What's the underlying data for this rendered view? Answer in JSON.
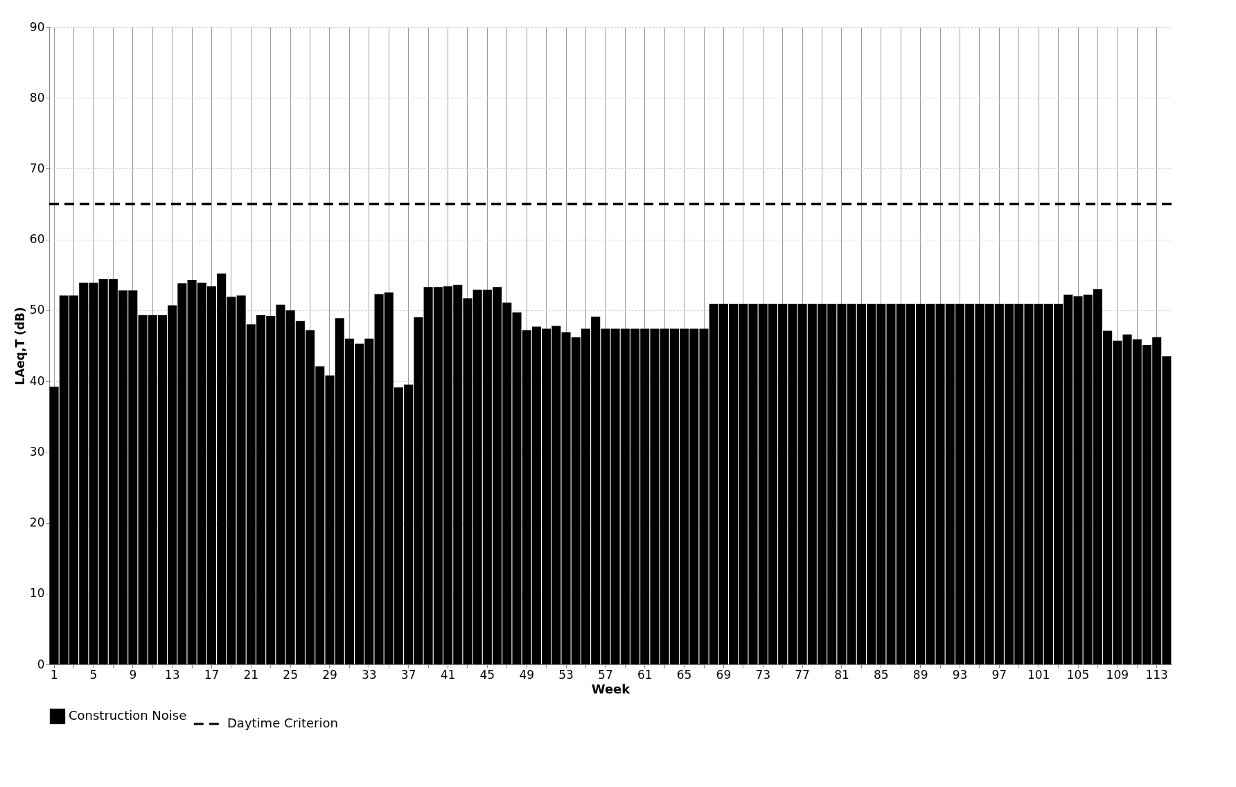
{
  "chart_data": {
    "type": "bar",
    "xlabel": "Week",
    "ylabel": "LAeq,T (dB)",
    "categories": [
      "1",
      null,
      null,
      null,
      "5",
      null,
      null,
      null,
      "9",
      null,
      null,
      null,
      "13",
      null,
      null,
      null,
      "17",
      null,
      null,
      null,
      "21",
      null,
      null,
      null,
      "25",
      null,
      null,
      null,
      "29",
      null,
      null,
      null,
      "33",
      null,
      null,
      null,
      "37",
      null,
      null,
      null,
      "41",
      null,
      null,
      null,
      "45",
      null,
      null,
      null,
      "49",
      null,
      null,
      null,
      "53",
      null,
      null,
      null,
      "57",
      null,
      null,
      null,
      "61",
      null,
      null,
      null,
      "65",
      null,
      null,
      null,
      "69",
      null,
      null,
      null,
      "73",
      null,
      null,
      null,
      "77",
      null,
      null,
      null,
      "81",
      null,
      null,
      null,
      "85",
      null,
      null,
      null,
      "89",
      null,
      null,
      null,
      "93",
      null,
      null,
      null,
      "97",
      null,
      null,
      null,
      "101",
      null,
      null,
      null,
      "105",
      null,
      null,
      null,
      "109",
      null,
      null,
      null,
      "113",
      null
    ],
    "series": [
      {
        "name": "Construction Noise",
        "color": "#000000",
        "values": [
          39.2,
          52.1,
          52.1,
          53.9,
          53.9,
          54.4,
          54.4,
          52.8,
          52.8,
          49.3,
          49.3,
          49.3,
          50.7,
          53.8,
          54.3,
          53.9,
          53.4,
          55.2,
          51.9,
          52.1,
          48.0,
          49.3,
          49.2,
          50.8,
          50.0,
          48.5,
          47.2,
          42.1,
          40.8,
          48.9,
          46.0,
          45.3,
          46.0,
          52.3,
          52.5,
          39.1,
          39.5,
          49.0,
          53.3,
          53.3,
          53.4,
          53.6,
          51.7,
          52.9,
          52.9,
          53.3,
          51.1,
          49.7,
          47.2,
          47.7,
          47.4,
          47.8,
          46.9,
          46.2,
          47.4,
          49.1,
          47.4,
          47.4,
          47.4,
          47.4,
          47.4,
          47.4,
          47.4,
          47.4,
          47.4,
          47.4,
          47.4,
          50.9,
          50.9,
          50.9,
          50.9,
          50.9,
          50.9,
          50.9,
          50.9,
          50.9,
          50.9,
          50.9,
          50.9,
          50.9,
          50.9,
          50.9,
          50.9,
          50.9,
          50.9,
          50.9,
          50.9,
          50.9,
          50.9,
          50.9,
          50.9,
          50.9,
          50.9,
          50.9,
          50.9,
          50.9,
          50.9,
          50.9,
          50.9,
          50.9,
          50.9,
          50.9,
          50.9,
          52.2,
          52.0,
          52.2,
          53.0,
          47.1,
          45.7,
          46.6,
          45.9,
          45.1,
          46.2,
          43.5
        ]
      }
    ],
    "ref_lines": [
      {
        "axis": "y",
        "value": 65,
        "label": "Daytime Criterion",
        "color": "#000000",
        "line_style": "dashed"
      }
    ],
    "ylim": [
      0,
      90
    ],
    "yticks": [
      0,
      10,
      20,
      30,
      40,
      50,
      60,
      70,
      80,
      90
    ],
    "grid": true,
    "legend": "bottom"
  }
}
